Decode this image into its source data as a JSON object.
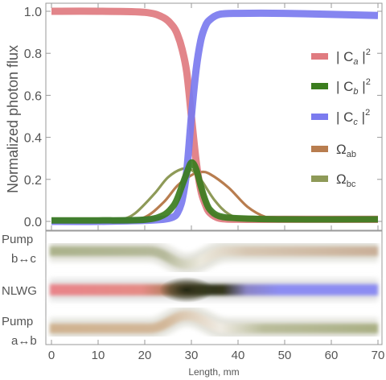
{
  "chart_data": [
    {
      "type": "line",
      "ylabel": "Normalized photon flux",
      "xlim": [
        0,
        70
      ],
      "ylim": [
        0,
        1.0
      ],
      "yticks": [
        0.0,
        0.2,
        0.4,
        0.6,
        0.8,
        1.0
      ],
      "ytick_labels": [
        "0.0",
        "0.2",
        "0.4",
        "0.6",
        "0.8",
        "1.0"
      ],
      "grid": false,
      "legend_position": "right",
      "series": [
        {
          "name": "|Ca|²",
          "legend_main": "| C",
          "legend_sub": "a",
          "legend_post": " |",
          "legend_sup": "2",
          "color": "#e07b80",
          "x": [
            0,
            10,
            20,
            24,
            26,
            27,
            28,
            29,
            30,
            31,
            32,
            33,
            34,
            36,
            40,
            50,
            70
          ],
          "y": [
            1.0,
            1.0,
            0.995,
            0.97,
            0.93,
            0.89,
            0.82,
            0.71,
            0.5,
            0.29,
            0.15,
            0.08,
            0.04,
            0.015,
            0.01,
            0.01,
            0.01
          ]
        },
        {
          "name": "|Cb|²",
          "legend_main": "| C",
          "legend_sub": "b",
          "legend_post": " |",
          "legend_sup": "2",
          "color": "#3b7d1e",
          "x": [
            0,
            10,
            20,
            24,
            26,
            27,
            28,
            29,
            30,
            31,
            32,
            33,
            34,
            36,
            40,
            50,
            70
          ],
          "y": [
            0.005,
            0.005,
            0.008,
            0.03,
            0.07,
            0.11,
            0.17,
            0.23,
            0.28,
            0.25,
            0.17,
            0.1,
            0.055,
            0.025,
            0.015,
            0.01,
            0.01
          ]
        },
        {
          "name": "|Cc|²",
          "legend_main": "| C",
          "legend_sub": "c",
          "legend_post": " |",
          "legend_sup": "2",
          "color": "#7b7bef",
          "x": [
            0,
            10,
            20,
            24,
            26,
            27,
            28,
            29,
            30,
            31,
            32,
            33,
            34,
            36,
            40,
            50,
            70
          ],
          "y": [
            0.0,
            0.0,
            0.005,
            0.01,
            0.02,
            0.04,
            0.1,
            0.24,
            0.5,
            0.72,
            0.86,
            0.93,
            0.96,
            0.985,
            0.99,
            0.99,
            0.98
          ]
        },
        {
          "name": "Ωab",
          "legend_main": "Ω",
          "legend_sub": "ab",
          "legend_post": "",
          "legend_sup": "",
          "color": "#b87d4f",
          "x": [
            0,
            10,
            15,
            20,
            24,
            27,
            30,
            32,
            34,
            38,
            42,
            46,
            50,
            60,
            70
          ],
          "y": [
            0,
            0,
            0.002,
            0.02,
            0.09,
            0.17,
            0.22,
            0.235,
            0.225,
            0.16,
            0.07,
            0.02,
            0.005,
            0,
            0
          ]
        },
        {
          "name": "Ωbc",
          "legend_main": "Ω",
          "legend_sub": "bc",
          "legend_post": "",
          "legend_sup": "",
          "color": "#8e9a58",
          "x": [
            0,
            10,
            15,
            18,
            22,
            25,
            28,
            30,
            32,
            35,
            38,
            42,
            50,
            70
          ],
          "y": [
            0,
            0.002,
            0.01,
            0.04,
            0.13,
            0.21,
            0.25,
            0.245,
            0.2,
            0.1,
            0.035,
            0.005,
            0,
            0
          ]
        }
      ]
    },
    {
      "type": "heatmap",
      "xlabel": "Length, mm",
      "xlim": [
        0,
        70
      ],
      "xticks": [
        0,
        10,
        20,
        30,
        40,
        50,
        60,
        70
      ],
      "xtick_labels": [
        "0",
        "10",
        "20",
        "30",
        "40",
        "50",
        "60",
        "70"
      ],
      "rows": [
        {
          "label_line1": "Pump",
          "label_line2": "b↔c"
        },
        {
          "label_line1": "NLWG",
          "label_line2": ""
        },
        {
          "label_line1": "Pump",
          "label_line2": "a↔b"
        }
      ]
    }
  ]
}
